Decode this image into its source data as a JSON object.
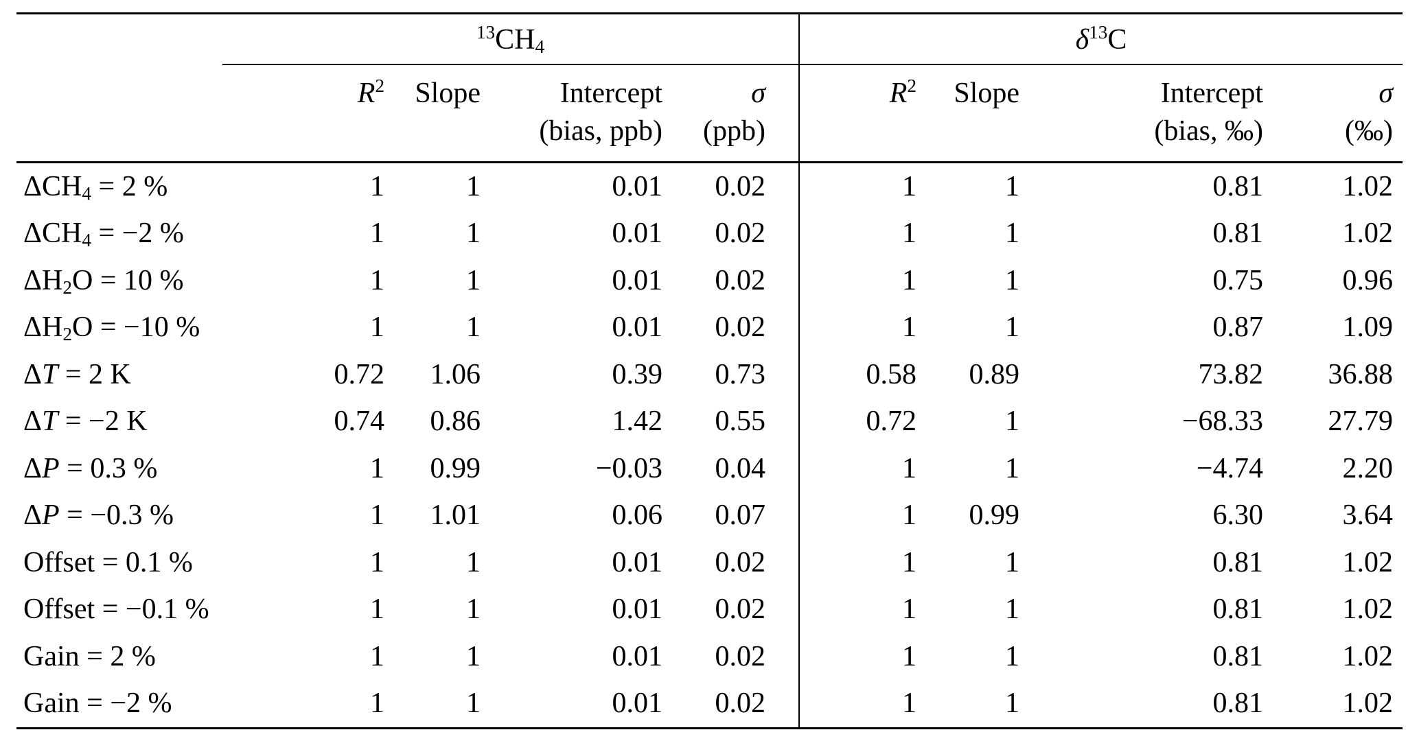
{
  "page": {
    "background": "#ffffff",
    "text_color": "#000000",
    "rule_color": "#000000"
  },
  "table": {
    "groups": [
      {
        "name": "13CH4",
        "label": [
          [
            "sup",
            "13"
          ],
          [
            "t",
            "CH"
          ],
          [
            "sub",
            "4"
          ]
        ]
      },
      {
        "name": "d13C",
        "label": [
          [
            "i",
            "δ"
          ],
          [
            "sup",
            "13"
          ],
          [
            "t",
            "C"
          ]
        ]
      }
    ],
    "columns": [
      {
        "name": "r2-13ch4",
        "title": [
          [
            "i",
            "R"
          ],
          [
            "sup",
            "2"
          ]
        ],
        "unit": []
      },
      {
        "name": "slope-13ch4",
        "title": [
          [
            "t",
            "Slope"
          ]
        ],
        "unit": []
      },
      {
        "name": "intercept-13ch4",
        "title": [
          [
            "t",
            "Intercept"
          ]
        ],
        "unit": [
          [
            "t",
            "(bias, ppb)"
          ]
        ]
      },
      {
        "name": "sigma-13ch4",
        "title": [
          [
            "i",
            "σ"
          ]
        ],
        "unit": [
          [
            "t",
            "(ppb)"
          ]
        ]
      },
      {
        "name": "r2-d13c",
        "title": [
          [
            "i",
            "R"
          ],
          [
            "sup",
            "2"
          ]
        ],
        "unit": []
      },
      {
        "name": "slope-d13c",
        "title": [
          [
            "t",
            "Slope"
          ]
        ],
        "unit": []
      },
      {
        "name": "intercept-d13c",
        "title": [
          [
            "t",
            "Intercept"
          ]
        ],
        "unit": [
          [
            "t",
            "(bias, ‰)"
          ]
        ]
      },
      {
        "name": "sigma-d13c",
        "title": [
          [
            "i",
            "σ"
          ]
        ],
        "unit": [
          [
            "t",
            "(‰)"
          ]
        ]
      }
    ],
    "rows": [
      {
        "label": [
          [
            "t",
            "ΔCH"
          ],
          [
            "sub",
            "4"
          ],
          [
            "t",
            " = 2 %"
          ]
        ],
        "values": [
          "1",
          "1",
          "0.01",
          "0.02",
          "1",
          "1",
          "0.81",
          "1.02"
        ]
      },
      {
        "label": [
          [
            "t",
            "ΔCH"
          ],
          [
            "sub",
            "4"
          ],
          [
            "t",
            " = −2 %"
          ]
        ],
        "values": [
          "1",
          "1",
          "0.01",
          "0.02",
          "1",
          "1",
          "0.81",
          "1.02"
        ]
      },
      {
        "label": [
          [
            "t",
            "ΔH"
          ],
          [
            "sub",
            "2"
          ],
          [
            "t",
            "O = 10 %"
          ]
        ],
        "values": [
          "1",
          "1",
          "0.01",
          "0.02",
          "1",
          "1",
          "0.75",
          "0.96"
        ]
      },
      {
        "label": [
          [
            "t",
            "ΔH"
          ],
          [
            "sub",
            "2"
          ],
          [
            "t",
            "O = −10 %"
          ]
        ],
        "values": [
          "1",
          "1",
          "0.01",
          "0.02",
          "1",
          "1",
          "0.87",
          "1.09"
        ]
      },
      {
        "label": [
          [
            "t",
            "Δ"
          ],
          [
            "i",
            "T"
          ],
          [
            "t",
            " = 2 K"
          ]
        ],
        "values": [
          "0.72",
          "1.06",
          "0.39",
          "0.73",
          "0.58",
          "0.89",
          "73.82",
          "36.88"
        ]
      },
      {
        "label": [
          [
            "t",
            "Δ"
          ],
          [
            "i",
            "T"
          ],
          [
            "t",
            " = −2 K"
          ]
        ],
        "values": [
          "0.74",
          "0.86",
          "1.42",
          "0.55",
          "0.72",
          "1",
          "−68.33",
          "27.79"
        ]
      },
      {
        "label": [
          [
            "t",
            "Δ"
          ],
          [
            "i",
            "P"
          ],
          [
            "t",
            " = 0.3 %"
          ]
        ],
        "values": [
          "1",
          "0.99",
          "−0.03",
          "0.04",
          "1",
          "1",
          "−4.74",
          "2.20"
        ]
      },
      {
        "label": [
          [
            "t",
            "Δ"
          ],
          [
            "i",
            "P"
          ],
          [
            "t",
            " = −0.3 %"
          ]
        ],
        "values": [
          "1",
          "1.01",
          "0.06",
          "0.07",
          "1",
          "0.99",
          "6.30",
          "3.64"
        ]
      },
      {
        "label": [
          [
            "t",
            "Offset = 0.1 %"
          ]
        ],
        "values": [
          "1",
          "1",
          "0.01",
          "0.02",
          "1",
          "1",
          "0.81",
          "1.02"
        ]
      },
      {
        "label": [
          [
            "t",
            "Offset = −0.1 %"
          ]
        ],
        "values": [
          "1",
          "1",
          "0.01",
          "0.02",
          "1",
          "1",
          "0.81",
          "1.02"
        ]
      },
      {
        "label": [
          [
            "t",
            "Gain = 2 %"
          ]
        ],
        "values": [
          "1",
          "1",
          "0.01",
          "0.02",
          "1",
          "1",
          "0.81",
          "1.02"
        ]
      },
      {
        "label": [
          [
            "t",
            "Gain = −2 %"
          ]
        ],
        "values": [
          "1",
          "1",
          "0.01",
          "0.02",
          "1",
          "1",
          "0.81",
          "1.02"
        ]
      }
    ]
  }
}
